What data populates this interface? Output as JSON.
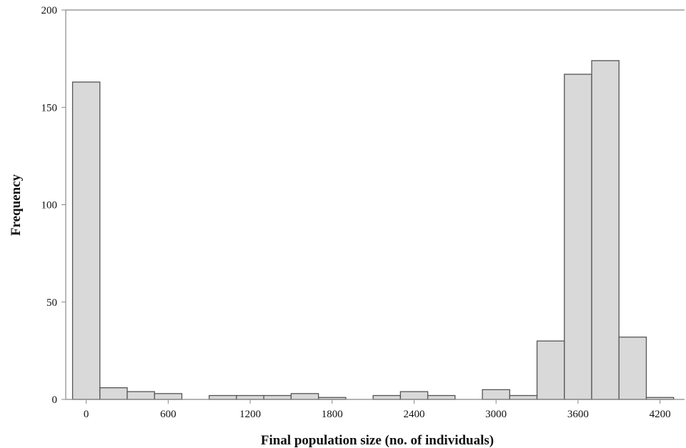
{
  "chart_data": {
    "type": "bar",
    "xlabel": "Final population size (no. of individuals)",
    "ylabel": "Frequency",
    "xlim": [
      -150,
      4380
    ],
    "ylim": [
      0,
      200
    ],
    "bin_width": 200,
    "x_ticks": [
      0,
      600,
      1200,
      1800,
      2400,
      3000,
      3600,
      4200
    ],
    "y_ticks": [
      0,
      50,
      100,
      150,
      200
    ],
    "bins": [
      {
        "x0": -100,
        "x1": 100,
        "count": 163
      },
      {
        "x0": 100,
        "x1": 300,
        "count": 6
      },
      {
        "x0": 300,
        "x1": 500,
        "count": 4
      },
      {
        "x0": 500,
        "x1": 700,
        "count": 3
      },
      {
        "x0": 700,
        "x1": 900,
        "count": 0
      },
      {
        "x0": 900,
        "x1": 1100,
        "count": 2
      },
      {
        "x0": 1100,
        "x1": 1300,
        "count": 2
      },
      {
        "x0": 1300,
        "x1": 1500,
        "count": 2
      },
      {
        "x0": 1500,
        "x1": 1700,
        "count": 3
      },
      {
        "x0": 1700,
        "x1": 1900,
        "count": 1
      },
      {
        "x0": 1900,
        "x1": 2100,
        "count": 0
      },
      {
        "x0": 2100,
        "x1": 2300,
        "count": 2
      },
      {
        "x0": 2300,
        "x1": 2500,
        "count": 4
      },
      {
        "x0": 2500,
        "x1": 2700,
        "count": 2
      },
      {
        "x0": 2700,
        "x1": 2900,
        "count": 0
      },
      {
        "x0": 2900,
        "x1": 3100,
        "count": 5
      },
      {
        "x0": 3100,
        "x1": 3300,
        "count": 2
      },
      {
        "x0": 3300,
        "x1": 3500,
        "count": 30
      },
      {
        "x0": 3500,
        "x1": 3700,
        "count": 167
      },
      {
        "x0": 3700,
        "x1": 3900,
        "count": 174
      },
      {
        "x0": 3900,
        "x1": 4100,
        "count": 32
      },
      {
        "x0": 4100,
        "x1": 4300,
        "count": 1
      }
    ],
    "colors": {
      "bar_fill": "#d9d9d9",
      "bar_stroke": "#555555",
      "axis": "#888888"
    },
    "grid": false,
    "legend": "none"
  }
}
